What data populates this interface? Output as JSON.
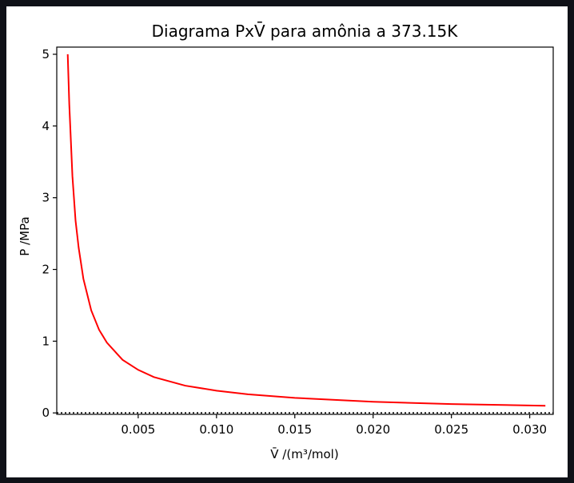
{
  "chart_data": {
    "type": "line",
    "title": "Diagrama PxV̄ para amônia a 373.15K",
    "xlabel": "V̄ /(m³/mol)",
    "ylabel": "P /MPa",
    "xlim": [
      -0.0002,
      0.0315
    ],
    "ylim": [
      -0.02,
      5.1
    ],
    "xticks": [
      "0.005",
      "0.010",
      "0.015",
      "0.020",
      "0.025",
      "0.030"
    ],
    "xtick_values": [
      0.005,
      0.01,
      0.015,
      0.02,
      0.025,
      0.03
    ],
    "yticks": [
      "0",
      "1",
      "2",
      "3",
      "4",
      "5"
    ],
    "ytick_values": [
      0,
      1,
      2,
      3,
      4,
      5
    ],
    "grid": false,
    "zero_line_style": "dotted",
    "series": [
      {
        "color": "#ff0000",
        "x": [
          0.0005,
          0.0006,
          0.0008,
          0.001,
          0.0012,
          0.0015,
          0.002,
          0.0025,
          0.003,
          0.004,
          0.005,
          0.006,
          0.008,
          0.01,
          0.012,
          0.015,
          0.02,
          0.025,
          0.031
        ],
        "y": [
          5.0,
          4.3,
          3.3,
          2.68,
          2.3,
          1.87,
          1.43,
          1.16,
          0.98,
          0.74,
          0.6,
          0.5,
          0.38,
          0.31,
          0.26,
          0.21,
          0.155,
          0.123,
          0.1
        ]
      }
    ]
  }
}
